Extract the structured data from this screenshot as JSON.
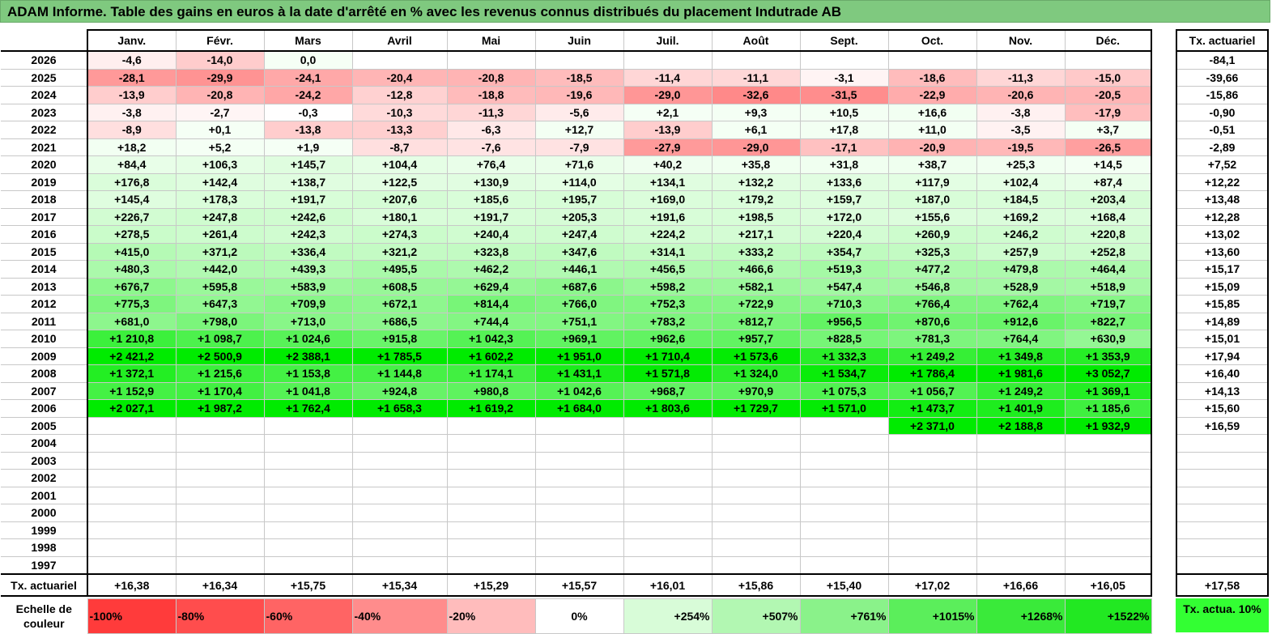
{
  "title": "ADAM Informe. Table des gains en euros à la date d'arrêté en % avec les revenus connus distribués du placement Indutrade AB",
  "colors": {
    "title_bg": "#7fc97f",
    "neg_full": "#ff3333",
    "pos_full": "#00ee00",
    "neutral": "#ffffff"
  },
  "chart_data": {
    "type": "table",
    "months": [
      "Janv.",
      "Févr.",
      "Mars",
      "Avril",
      "Mai",
      "Juin",
      "Juil.",
      "Août",
      "Sept.",
      "Oct.",
      "Nov.",
      "Déc."
    ],
    "side_header": "Tx. actuariel",
    "rows": [
      {
        "year": "2026",
        "values": [
          "-4,6",
          "-14,0",
          "0,0",
          "",
          "",
          "",
          "",
          "",
          "",
          "",
          "",
          ""
        ],
        "tx": "-84,1"
      },
      {
        "year": "2025",
        "values": [
          "-28,1",
          "-29,9",
          "-24,1",
          "-20,4",
          "-20,8",
          "-18,5",
          "-11,4",
          "-11,1",
          "-3,1",
          "-18,6",
          "-11,3",
          "-15,0"
        ],
        "tx": "-39,66"
      },
      {
        "year": "2024",
        "values": [
          "-13,9",
          "-20,8",
          "-24,2",
          "-12,8",
          "-18,8",
          "-19,6",
          "-29,0",
          "-32,6",
          "-31,5",
          "-22,9",
          "-20,6",
          "-20,5"
        ],
        "tx": "-15,86"
      },
      {
        "year": "2023",
        "values": [
          "-3,8",
          "-2,7",
          "-0,3",
          "-10,3",
          "-11,3",
          "-5,6",
          "+2,1",
          "+9,3",
          "+10,5",
          "+16,6",
          "-3,8",
          "-17,9"
        ],
        "tx": "-0,90"
      },
      {
        "year": "2022",
        "values": [
          "-8,9",
          "+0,1",
          "-13,8",
          "-13,3",
          "-6,3",
          "+12,7",
          "-13,9",
          "+6,1",
          "+17,8",
          "+11,0",
          "-3,5",
          "+3,7"
        ],
        "tx": "-0,51"
      },
      {
        "year": "2021",
        "values": [
          "+18,2",
          "+5,2",
          "+1,9",
          "-8,7",
          "-7,6",
          "-7,9",
          "-27,9",
          "-29,0",
          "-17,1",
          "-20,9",
          "-19,5",
          "-26,5"
        ],
        "tx": "-2,89"
      },
      {
        "year": "2020",
        "values": [
          "+84,4",
          "+106,3",
          "+145,7",
          "+104,4",
          "+76,4",
          "+71,6",
          "+40,2",
          "+35,8",
          "+31,8",
          "+38,7",
          "+25,3",
          "+14,5"
        ],
        "tx": "+7,52"
      },
      {
        "year": "2019",
        "values": [
          "+176,8",
          "+142,4",
          "+138,7",
          "+122,5",
          "+130,9",
          "+114,0",
          "+134,1",
          "+132,2",
          "+133,6",
          "+117,9",
          "+102,4",
          "+87,4"
        ],
        "tx": "+12,22"
      },
      {
        "year": "2018",
        "values": [
          "+145,4",
          "+178,3",
          "+191,7",
          "+207,6",
          "+185,6",
          "+195,7",
          "+169,0",
          "+179,2",
          "+159,7",
          "+187,0",
          "+184,5",
          "+203,4"
        ],
        "tx": "+13,48"
      },
      {
        "year": "2017",
        "values": [
          "+226,7",
          "+247,8",
          "+242,6",
          "+180,1",
          "+191,7",
          "+205,3",
          "+191,6",
          "+198,5",
          "+172,0",
          "+155,6",
          "+169,2",
          "+168,4"
        ],
        "tx": "+12,28"
      },
      {
        "year": "2016",
        "values": [
          "+278,5",
          "+261,4",
          "+242,3",
          "+274,3",
          "+240,4",
          "+247,4",
          "+224,2",
          "+217,1",
          "+220,4",
          "+260,9",
          "+246,2",
          "+220,8"
        ],
        "tx": "+13,02"
      },
      {
        "year": "2015",
        "values": [
          "+415,0",
          "+371,2",
          "+336,4",
          "+321,2",
          "+323,8",
          "+347,6",
          "+314,1",
          "+333,2",
          "+354,7",
          "+325,3",
          "+257,9",
          "+252,8"
        ],
        "tx": "+13,60"
      },
      {
        "year": "2014",
        "values": [
          "+480,3",
          "+442,0",
          "+439,3",
          "+495,5",
          "+462,2",
          "+446,1",
          "+456,5",
          "+466,6",
          "+519,3",
          "+477,2",
          "+479,8",
          "+464,4"
        ],
        "tx": "+15,17"
      },
      {
        "year": "2013",
        "values": [
          "+676,7",
          "+595,8",
          "+583,9",
          "+608,5",
          "+629,4",
          "+687,6",
          "+598,2",
          "+582,1",
          "+547,4",
          "+546,8",
          "+528,9",
          "+518,9"
        ],
        "tx": "+15,09"
      },
      {
        "year": "2012",
        "values": [
          "+775,3",
          "+647,3",
          "+709,9",
          "+672,1",
          "+814,4",
          "+766,0",
          "+752,3",
          "+722,9",
          "+710,3",
          "+766,4",
          "+762,4",
          "+719,7"
        ],
        "tx": "+15,85"
      },
      {
        "year": "2011",
        "values": [
          "+681,0",
          "+798,0",
          "+713,0",
          "+686,5",
          "+744,4",
          "+751,1",
          "+783,2",
          "+812,7",
          "+956,5",
          "+870,6",
          "+912,6",
          "+822,7"
        ],
        "tx": "+14,89"
      },
      {
        "year": "2010",
        "values": [
          "+1 210,8",
          "+1 098,7",
          "+1 024,6",
          "+915,8",
          "+1 042,3",
          "+969,1",
          "+962,6",
          "+957,7",
          "+828,5",
          "+781,3",
          "+764,4",
          "+630,9"
        ],
        "tx": "+15,01"
      },
      {
        "year": "2009",
        "values": [
          "+2 421,2",
          "+2 500,9",
          "+2 388,1",
          "+1 785,5",
          "+1 602,2",
          "+1 951,0",
          "+1 710,4",
          "+1 573,6",
          "+1 332,3",
          "+1 249,2",
          "+1 349,8",
          "+1 353,9"
        ],
        "tx": "+17,94"
      },
      {
        "year": "2008",
        "values": [
          "+1 372,1",
          "+1 215,6",
          "+1 153,8",
          "+1 144,8",
          "+1 174,1",
          "+1 431,1",
          "+1 571,8",
          "+1 324,0",
          "+1 534,7",
          "+1 786,4",
          "+1 981,6",
          "+3 052,7"
        ],
        "tx": "+16,40"
      },
      {
        "year": "2007",
        "values": [
          "+1 152,9",
          "+1 170,4",
          "+1 041,8",
          "+924,8",
          "+980,8",
          "+1 042,6",
          "+968,7",
          "+970,9",
          "+1 075,3",
          "+1 056,7",
          "+1 249,2",
          "+1 369,1"
        ],
        "tx": "+14,13"
      },
      {
        "year": "2006",
        "values": [
          "+2 027,1",
          "+1 987,2",
          "+1 762,4",
          "+1 658,3",
          "+1 619,2",
          "+1 684,0",
          "+1 803,6",
          "+1 729,7",
          "+1 571,0",
          "+1 473,7",
          "+1 401,9",
          "+1 185,6"
        ],
        "tx": "+15,60"
      },
      {
        "year": "2005",
        "values": [
          "",
          "",
          "",
          "",
          "",
          "",
          "",
          "",
          "",
          "+2 371,0",
          "+2 188,8",
          "+1 932,9"
        ],
        "tx": "+16,59"
      },
      {
        "year": "2004",
        "values": [
          "",
          "",
          "",
          "",
          "",
          "",
          "",
          "",
          "",
          "",
          "",
          ""
        ],
        "tx": ""
      },
      {
        "year": "2003",
        "values": [
          "",
          "",
          "",
          "",
          "",
          "",
          "",
          "",
          "",
          "",
          "",
          ""
        ],
        "tx": ""
      },
      {
        "year": "2002",
        "values": [
          "",
          "",
          "",
          "",
          "",
          "",
          "",
          "",
          "",
          "",
          "",
          ""
        ],
        "tx": ""
      },
      {
        "year": "2001",
        "values": [
          "",
          "",
          "",
          "",
          "",
          "",
          "",
          "",
          "",
          "",
          "",
          ""
        ],
        "tx": ""
      },
      {
        "year": "2000",
        "values": [
          "",
          "",
          "",
          "",
          "",
          "",
          "",
          "",
          "",
          "",
          "",
          ""
        ],
        "tx": ""
      },
      {
        "year": "1999",
        "values": [
          "",
          "",
          "",
          "",
          "",
          "",
          "",
          "",
          "",
          "",
          "",
          ""
        ],
        "tx": ""
      },
      {
        "year": "1998",
        "values": [
          "",
          "",
          "",
          "",
          "",
          "",
          "",
          "",
          "",
          "",
          "",
          ""
        ],
        "tx": ""
      },
      {
        "year": "1997",
        "values": [
          "",
          "",
          "",
          "",
          "",
          "",
          "",
          "",
          "",
          "",
          "",
          ""
        ],
        "tx": ""
      }
    ],
    "total_row": {
      "label": "Tx. actuariel",
      "values": [
        "+16,38",
        "+16,34",
        "+15,75",
        "+15,34",
        "+15,29",
        "+15,57",
        "+16,01",
        "+15,86",
        "+15,40",
        "+17,02",
        "+16,66",
        "+16,05"
      ],
      "tx": "+17,58"
    },
    "legend": {
      "label": "Echelle de couleur",
      "items": [
        {
          "text": "-100%",
          "color": "#ff3b3b"
        },
        {
          "text": "-80%",
          "color": "#ff4d4d"
        },
        {
          "text": "-60%",
          "color": "#ff6464"
        },
        {
          "text": "-40%",
          "color": "#ff8c8c"
        },
        {
          "text": "-20%",
          "color": "#ffbcbc"
        },
        {
          "text": "0%",
          "color": "#ffffff"
        },
        {
          "text": "+254%",
          "color": "#d8fcd8"
        },
        {
          "text": "+507%",
          "color": "#b2f7b2"
        },
        {
          "text": "+761%",
          "color": "#8af28a"
        },
        {
          "text": "+1015%",
          "color": "#5bee5b"
        },
        {
          "text": "+1268%",
          "color": "#3aea3a"
        },
        {
          "text": "+1522%",
          "color": "#22e822"
        }
      ],
      "side": "Tx. actua. 10%"
    }
  }
}
